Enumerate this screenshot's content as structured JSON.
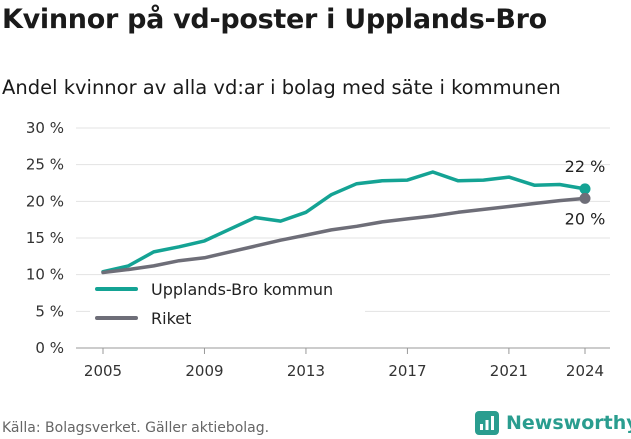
{
  "title": "Kvinnor på vd-poster i Upplands-Bro",
  "subtitle": "Andel kvinnor av alla vd:ar i bolag med säte i kommunen",
  "source": "Källa: Bolagsverket. Gäller aktiebolag.",
  "brand": {
    "name": "Newsworthy",
    "icon": "newsworthy-logo-icon",
    "color": "#2a9d8f"
  },
  "chart_data": {
    "type": "line",
    "x": [
      2005,
      2006,
      2007,
      2008,
      2009,
      2010,
      2011,
      2012,
      2013,
      2014,
      2015,
      2016,
      2017,
      2018,
      2019,
      2020,
      2021,
      2022,
      2023,
      2024
    ],
    "x_ticks": [
      2005,
      2009,
      2013,
      2017,
      2021,
      2024
    ],
    "y_ticks": [
      0,
      5,
      10,
      15,
      20,
      25,
      30
    ],
    "y_tick_labels": [
      "0 %",
      "5 %",
      "10 %",
      "15 %",
      "20 %",
      "25 %",
      "30 %"
    ],
    "ylim": [
      0,
      30
    ],
    "grid": true,
    "legend_position": "bottom-left",
    "series": [
      {
        "name": "Upplands-Bro kommun",
        "color": "#14a394",
        "values": [
          10.4,
          11.2,
          13.1,
          13.8,
          14.6,
          16.2,
          17.8,
          17.3,
          18.5,
          20.9,
          22.4,
          22.8,
          22.9,
          24.0,
          22.8,
          22.9,
          23.3,
          22.2,
          22.3,
          21.7
        ],
        "end_label": "22 %"
      },
      {
        "name": "Riket",
        "color": "#6e6e78",
        "values": [
          10.3,
          10.7,
          11.2,
          11.9,
          12.3,
          13.1,
          13.9,
          14.7,
          15.4,
          16.1,
          16.6,
          17.2,
          17.6,
          18.0,
          18.5,
          18.9,
          19.3,
          19.7,
          20.1,
          20.4
        ],
        "end_label": "20 %"
      }
    ]
  }
}
